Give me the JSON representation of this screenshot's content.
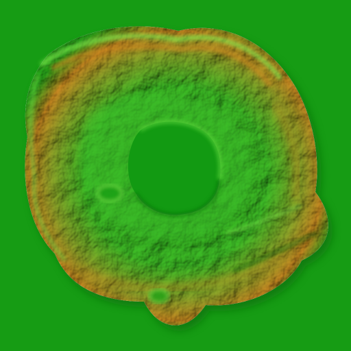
{
  "map": {
    "kind": "shaded-relief-heightmap",
    "feature": "crater-ringed-plateau",
    "colors": {
      "lowland": "#169c14",
      "plateau": "#2fb823",
      "rim_highlight": "#78e84a",
      "shadow": "#0a6a0a",
      "slope_orange": "#c98a22",
      "crater_floor": "#129a12"
    }
  }
}
